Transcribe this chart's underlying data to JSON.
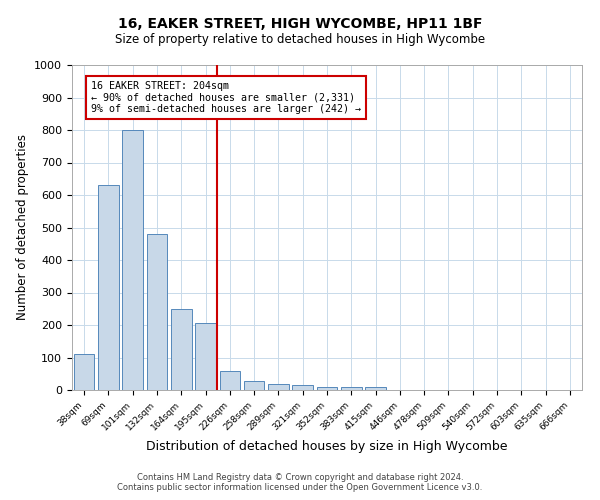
{
  "title_line1": "16, EAKER STREET, HIGH WYCOMBE, HP11 1BF",
  "title_line2": "Size of property relative to detached houses in High Wycombe",
  "xlabel": "Distribution of detached houses by size in High Wycombe",
  "ylabel": "Number of detached properties",
  "bar_labels": [
    "38sqm",
    "69sqm",
    "101sqm",
    "132sqm",
    "164sqm",
    "195sqm",
    "226sqm",
    "258sqm",
    "289sqm",
    "321sqm",
    "352sqm",
    "383sqm",
    "415sqm",
    "446sqm",
    "478sqm",
    "509sqm",
    "540sqm",
    "572sqm",
    "603sqm",
    "635sqm",
    "666sqm"
  ],
  "bar_values": [
    110,
    630,
    800,
    480,
    250,
    205,
    60,
    27,
    20,
    15,
    10,
    8,
    10,
    0,
    0,
    0,
    0,
    0,
    0,
    0,
    0
  ],
  "bar_color": "#c8d8e8",
  "bar_edge_color": "#5588bb",
  "annotation_text_line1": "16 EAKER STREET: 204sqm",
  "annotation_text_line2": "← 90% of detached houses are smaller (2,331)",
  "annotation_text_line3": "9% of semi-detached houses are larger (242) →",
  "annotation_box_color": "#cc0000",
  "vline_color": "#cc0000",
  "vline_x": 5.45,
  "ylim": [
    0,
    1000
  ],
  "yticks": [
    0,
    100,
    200,
    300,
    400,
    500,
    600,
    700,
    800,
    900,
    1000
  ],
  "footer_line1": "Contains HM Land Registry data © Crown copyright and database right 2024.",
  "footer_line2": "Contains public sector information licensed under the Open Government Licence v3.0.",
  "bg_color": "#ffffff",
  "grid_color": "#c8daea"
}
